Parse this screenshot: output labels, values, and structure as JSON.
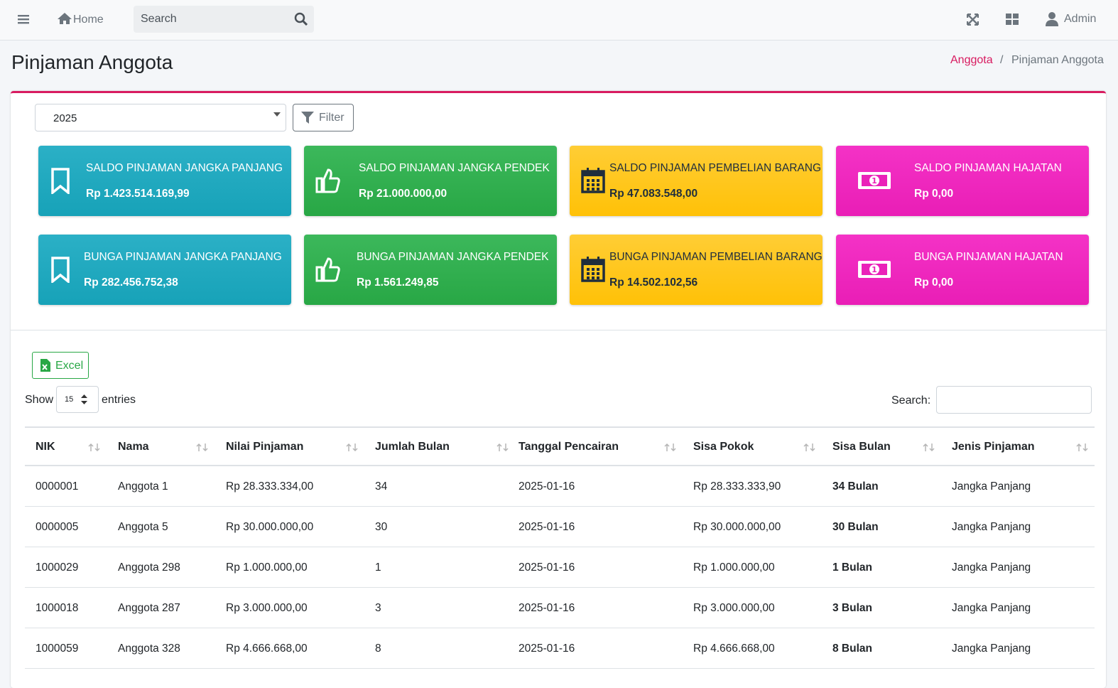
{
  "navbar": {
    "home": "Home",
    "search": "Search",
    "user": "Admin"
  },
  "header": {
    "title": "Pinjaman Anggota",
    "breadcrumb": [
      "Anggota",
      "Pinjaman Anggota"
    ]
  },
  "filter": {
    "year": "2025",
    "button": "Filter"
  },
  "cards": [
    {
      "label": "SALDO PINJAMAN JANGKA PANJANG",
      "value": "Rp 1.423.514.169,99"
    },
    {
      "label": "SALDO PINJAMAN JANGKA PENDEK",
      "value": "Rp 21.000.000,00"
    },
    {
      "label": "SALDO PINJAMAN PEMBELIAN BARANG",
      "value": "Rp 47.083.548,00"
    },
    {
      "label": "SALDO PINJAMAN HAJATAN",
      "value": "Rp 0,00"
    },
    {
      "label": "BUNGA PINJAMAN JANGKA PANJANG",
      "value": "Rp 282.456.752,38"
    },
    {
      "label": "BUNGA PINJAMAN JANGKA PENDEK",
      "value": "Rp 1.561.249,85"
    },
    {
      "label": "BUNGA PINJAMAN PEMBELIAN BARANG",
      "value": "Rp 14.502.102,56"
    },
    {
      "label": "BUNGA PINJAMAN HAJATAN",
      "value": "Rp 0,00"
    }
  ],
  "table": {
    "excel": "Excel",
    "show": "Show",
    "length": "15",
    "entries": "entries",
    "search": "Search:",
    "columns": [
      "NIK",
      "Nama",
      "Nilai Pinjaman",
      "Jumlah Bulan",
      "Tanggal Pencairan",
      "Sisa Pokok",
      "Sisa Bulan",
      "Jenis Pinjaman"
    ],
    "rows": [
      [
        "0000001",
        "Anggota 1",
        "Rp 28.333.334,00",
        "34",
        "2025-01-16",
        "Rp 28.333.333,90",
        "34 Bulan",
        "Jangka Panjang"
      ],
      [
        "0000005",
        "Anggota 5",
        "Rp 30.000.000,00",
        "30",
        "2025-01-16",
        "Rp 30.000.000,00",
        "30 Bulan",
        "Jangka Panjang"
      ],
      [
        "1000029",
        "Anggota 298",
        "Rp 1.000.000,00",
        "1",
        "2025-01-16",
        "Rp 1.000.000,00",
        "1 Bulan",
        "Jangka Panjang"
      ],
      [
        "1000018",
        "Anggota 287",
        "Rp 3.000.000,00",
        "3",
        "2025-01-16",
        "Rp 3.000.000,00",
        "3 Bulan",
        "Jangka Panjang"
      ],
      [
        "1000059",
        "Anggota 328",
        "Rp 4.666.668,00",
        "8",
        "2025-01-16",
        "Rp 4.666.668,00",
        "8 Bulan",
        "Jangka Panjang"
      ]
    ]
  }
}
